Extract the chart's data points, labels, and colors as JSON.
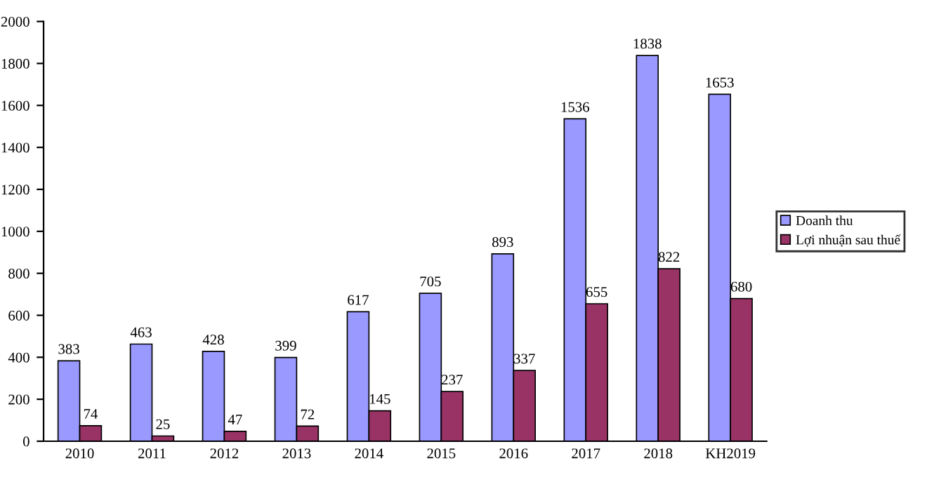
{
  "chart_data": {
    "type": "bar",
    "categories": [
      "2010",
      "2011",
      "2012",
      "2013",
      "2014",
      "2015",
      "2016",
      "2017",
      "2018",
      "KH2019"
    ],
    "series": [
      {
        "name": "Doanh thu",
        "color": "#9999ff",
        "values": [
          383,
          463,
          428,
          399,
          617,
          705,
          893,
          1536,
          1838,
          1653
        ]
      },
      {
        "name": "Lợi nhuận sau thuế",
        "color": "#993366",
        "values": [
          74,
          25,
          47,
          72,
          145,
          237,
          337,
          655,
          822,
          680
        ]
      }
    ],
    "ylim": [
      0,
      2000
    ],
    "yticks": [
      0,
      200,
      400,
      600,
      800,
      1000,
      1200,
      1400,
      1600,
      1800,
      2000
    ],
    "data_labels": true,
    "grid": false,
    "legend": "right"
  }
}
